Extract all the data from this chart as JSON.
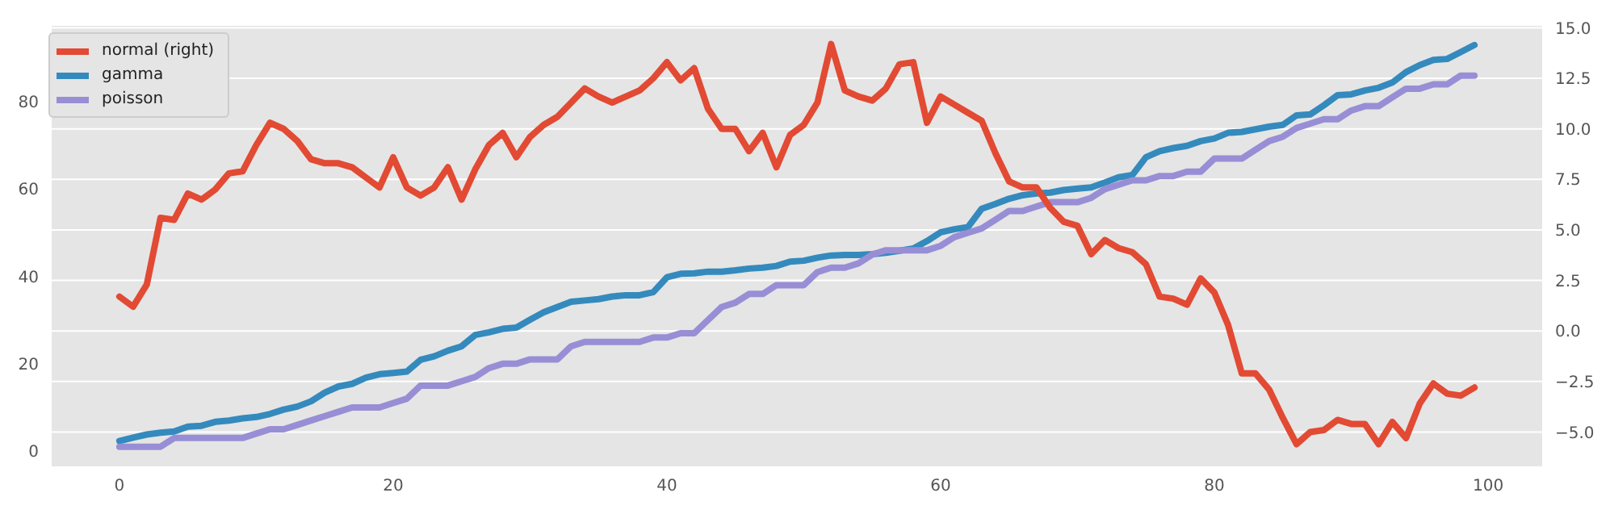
{
  "chart_data": {
    "type": "line",
    "x": [
      0,
      1,
      2,
      3,
      4,
      5,
      6,
      7,
      8,
      9,
      10,
      11,
      12,
      13,
      14,
      15,
      16,
      17,
      18,
      19,
      20,
      21,
      22,
      23,
      24,
      25,
      26,
      27,
      28,
      29,
      30,
      31,
      32,
      33,
      34,
      35,
      36,
      37,
      38,
      39,
      40,
      41,
      42,
      43,
      44,
      45,
      46,
      47,
      48,
      49,
      50,
      51,
      52,
      53,
      54,
      55,
      56,
      57,
      58,
      59,
      60,
      61,
      62,
      63,
      64,
      65,
      66,
      67,
      68,
      69,
      70,
      71,
      72,
      73,
      74,
      75,
      76,
      77,
      78,
      79,
      80,
      81,
      82,
      83,
      84,
      85,
      86,
      87,
      88,
      89,
      90,
      91,
      92,
      93,
      94,
      95,
      96,
      97,
      98,
      99
    ],
    "series": [
      {
        "name": "normal (right)",
        "color": "#e24a33",
        "axis": "y2",
        "values": [
          1.7,
          1.2,
          2.3,
          5.6,
          5.5,
          6.8,
          6.5,
          7.0,
          7.8,
          7.9,
          9.2,
          10.3,
          10.0,
          9.4,
          8.5,
          8.3,
          8.3,
          8.1,
          7.6,
          7.1,
          8.6,
          7.1,
          6.7,
          7.1,
          8.1,
          6.5,
          8.0,
          9.2,
          9.8,
          8.6,
          9.6,
          10.2,
          10.6,
          11.3,
          12.0,
          11.6,
          11.3,
          11.6,
          11.9,
          12.5,
          13.3,
          12.4,
          13.0,
          11.0,
          10.0,
          10.0,
          8.9,
          9.8,
          8.1,
          9.7,
          10.2,
          11.3,
          14.2,
          11.9,
          11.6,
          11.4,
          12.0,
          13.2,
          13.3,
          10.3,
          11.6,
          11.2,
          10.8,
          10.4,
          8.8,
          7.4,
          7.1,
          7.1,
          6.1,
          5.4,
          5.2,
          3.8,
          4.5,
          4.1,
          3.9,
          3.3,
          1.7,
          1.6,
          1.3,
          2.6,
          1.9,
          0.3,
          -2.1,
          -2.1,
          -2.9,
          -4.3,
          -5.6,
          -5.0,
          -4.9,
          -4.4,
          -4.6,
          -4.6,
          -5.6,
          -4.5,
          -5.3,
          -3.6,
          -2.6,
          -3.1,
          -3.2,
          -2.8
        ]
      },
      {
        "name": "gamma",
        "color": "#348abd",
        "values": [
          2.3,
          3.1,
          3.8,
          4.2,
          4.5,
          5.6,
          5.8,
          6.7,
          7.0,
          7.5,
          7.8,
          8.5,
          9.5,
          10.2,
          11.4,
          13.4,
          14.8,
          15.4,
          16.8,
          17.6,
          17.9,
          18.2,
          20.9,
          21.7,
          23.0,
          24.0,
          26.6,
          27.2,
          28.0,
          28.3,
          30.1,
          31.8,
          33.0,
          34.2,
          34.5,
          34.8,
          35.4,
          35.7,
          35.7,
          36.4,
          39.8,
          40.6,
          40.7,
          41.1,
          41.1,
          41.4,
          41.8,
          42.0,
          42.4,
          43.4,
          43.6,
          44.3,
          44.8,
          44.9,
          44.9,
          45.1,
          45.4,
          45.9,
          46.4,
          48.1,
          50.1,
          50.8,
          51.3,
          55.5,
          56.6,
          57.8,
          58.6,
          59.0,
          59.2,
          59.8,
          60.1,
          60.4,
          61.5,
          62.7,
          63.2,
          67.3,
          68.7,
          69.4,
          69.9,
          71.0,
          71.6,
          72.9,
          73.1,
          73.7,
          74.3,
          74.7,
          76.9,
          77.1,
          79.2,
          81.5,
          81.7,
          82.6,
          83.2,
          84.4,
          86.8,
          88.4,
          89.6,
          89.8,
          91.4,
          93.0
        ]
      },
      {
        "name": "poisson",
        "color": "#988ed5",
        "values": [
          1,
          1,
          1,
          1,
          3,
          3,
          3,
          3,
          3,
          3,
          4,
          5,
          5,
          6,
          7,
          8,
          9,
          10,
          10,
          10,
          11,
          12,
          15,
          15,
          15,
          16,
          17,
          19,
          20,
          20,
          21,
          21,
          21,
          24,
          25,
          25,
          25,
          25,
          25,
          26,
          26,
          27,
          27,
          30,
          33,
          34,
          36,
          36,
          38,
          38,
          38,
          41,
          42,
          42,
          43,
          45,
          46,
          46,
          46,
          46,
          47,
          49,
          50,
          51,
          53,
          55,
          55,
          56,
          57,
          57,
          57,
          58,
          60,
          61,
          62,
          62,
          63,
          63,
          64,
          64,
          67,
          67,
          67,
          69,
          71,
          72,
          74,
          75,
          76,
          76,
          78,
          79,
          79,
          81,
          83,
          83,
          84,
          84,
          86,
          86
        ]
      }
    ],
    "xlim": [
      -4.95,
      103.95
    ],
    "xticks": [
      0,
      20,
      40,
      60,
      80,
      100
    ],
    "ylim": [
      -3.5,
      97.4
    ],
    "yticks": [
      0,
      20,
      40,
      60,
      80
    ],
    "y2lim": [
      -6.7,
      15.1
    ],
    "y2ticks": [
      {
        "value": -5,
        "label": "−5.0"
      },
      {
        "value": -2.5,
        "label": "−2.5"
      },
      {
        "value": 0,
        "label": "0.0"
      },
      {
        "value": 2.5,
        "label": "2.5"
      },
      {
        "value": 5,
        "label": "5.0"
      },
      {
        "value": 7.5,
        "label": "7.5"
      },
      {
        "value": 10,
        "label": "10.0"
      },
      {
        "value": 12.5,
        "label": "12.5"
      },
      {
        "value": 15,
        "label": "15.0"
      }
    ],
    "grid": "y",
    "legend": "top left",
    "marker": "none",
    "line_style": "solid"
  }
}
